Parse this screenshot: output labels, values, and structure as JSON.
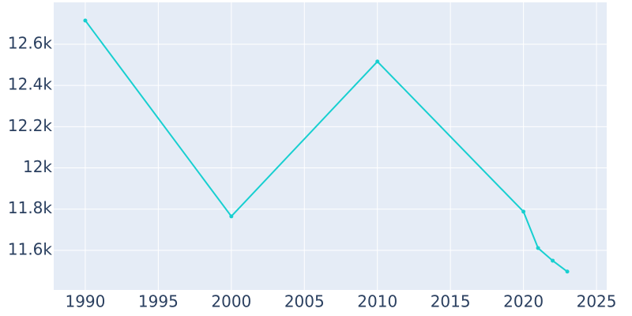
{
  "chart_data": {
    "type": "line",
    "x": [
      1990,
      2000,
      2010,
      2020,
      2021,
      2022,
      2023
    ],
    "series": [
      {
        "color": "#17cfd0",
        "values": [
          12715,
          11765,
          12516,
          11788,
          11611,
          11550,
          11497
        ]
      }
    ],
    "xlim": [
      1987.84,
      2025.7
    ],
    "xticks": [
      1990,
      1995,
      2000,
      2005,
      2010,
      2015,
      2020,
      2025
    ],
    "ylim": [
      11408,
      12803
    ],
    "yticks": [
      {
        "value": 11600,
        "label": "11.6k"
      },
      {
        "value": 11800,
        "label": "11.8k"
      },
      {
        "value": 12000,
        "label": "12k"
      },
      {
        "value": 12200,
        "label": "12.2k"
      },
      {
        "value": 12400,
        "label": "12.4k"
      },
      {
        "value": 12600,
        "label": "12.6k"
      }
    ],
    "grid": true,
    "background": "#e5ecf6"
  }
}
